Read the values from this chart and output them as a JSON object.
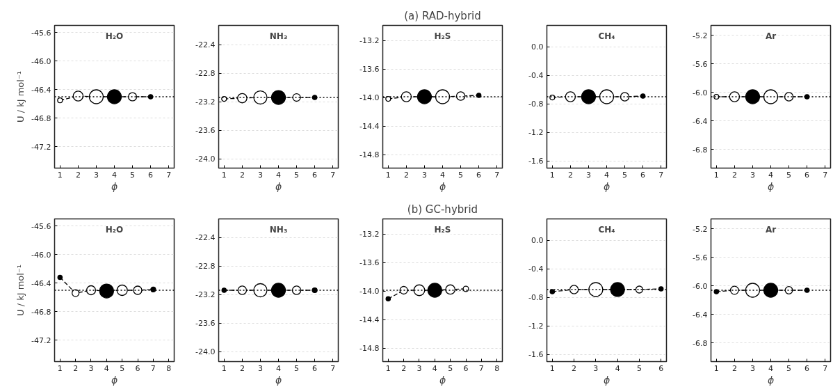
{
  "chart_data": [
    {
      "type": "bubble",
      "xlabel": "ϕ",
      "ylabel": "U / kJ mol⁻¹",
      "annotations": [
        "H₂O"
      ],
      "xlim": [
        0.7,
        7.3
      ],
      "xticks": [
        1,
        2,
        3,
        4,
        5,
        6,
        7
      ],
      "ylim": [
        -47.5,
        -45.5
      ],
      "yticks": [
        -47.2,
        -46.8,
        -46.4,
        {
          "value": -46,
          "label": "-46.0"
        },
        -45.6
      ],
      "grid": "y",
      "line_style": "dashed",
      "x": [
        1,
        2,
        3,
        4,
        5,
        6
      ],
      "series": [
        {
          "type": "line",
          "color": "#000000",
          "values": [
            -46.55,
            -46.49,
            -46.5,
            -46.5,
            -46.5,
            -46.5
          ]
        },
        {
          "type": "bubble",
          "color": "#000000",
          "values": [
            -46.55,
            -46.49,
            -46.5,
            -46.5,
            -46.5,
            -46.5
          ],
          "sizes": [
            0.12,
            0.5,
            1,
            1,
            0.35,
            0.1
          ],
          "colors": [
            "#ffffff",
            "#ffffff",
            "#ffffff",
            "#000000",
            "#ffffff",
            "#000000"
          ]
        }
      ],
      "ref_lines": [
        {
          "axis": "y",
          "value": -46.5,
          "line_style": "dotted",
          "color": "#000000"
        }
      ]
    },
    {
      "type": "bubble",
      "xlabel": "ϕ",
      "annotations": [
        "NH₃"
      ],
      "xlim": [
        0.7,
        7.3
      ],
      "xticks": [
        1,
        2,
        3,
        4,
        5,
        6,
        7
      ],
      "ylim": [
        -24.13,
        -22.13
      ],
      "yticks": [
        {
          "value": -24,
          "label": "-24.0"
        },
        -23.6,
        -23.2,
        -22.8,
        -22.4
      ],
      "grid": "y",
      "line_style": "dashed",
      "x": [
        1,
        2,
        3,
        4,
        5,
        6
      ],
      "series": [
        {
          "type": "line",
          "color": "#000000",
          "values": [
            -23.16,
            -23.15,
            -23.14,
            -23.14,
            -23.14,
            -23.14
          ]
        },
        {
          "type": "bubble",
          "color": "#000000",
          "values": [
            -23.16,
            -23.15,
            -23.14,
            -23.14,
            -23.14,
            -23.14
          ],
          "sizes": [
            0.12,
            0.45,
            0.9,
            1,
            0.3,
            0.1
          ],
          "colors": [
            "#ffffff",
            "#ffffff",
            "#ffffff",
            "#000000",
            "#ffffff",
            "#000000"
          ]
        }
      ],
      "ref_lines": [
        {
          "axis": "y",
          "value": -23.14,
          "line_style": "dotted",
          "color": "#000000"
        }
      ]
    },
    {
      "type": "bubble",
      "title": "(a) RAD-hybrid",
      "xlabel": "ϕ",
      "annotations": [
        "H₂S"
      ],
      "xlim": [
        0.7,
        7.3
      ],
      "xticks": [
        1,
        2,
        3,
        4,
        5,
        6,
        7
      ],
      "ylim": [
        -14.99,
        -12.99
      ],
      "yticks": [
        -14.8,
        -14.4,
        {
          "value": -14,
          "label": "-14.0"
        },
        -13.6,
        -13.2
      ],
      "grid": "y",
      "line_style": "dashed",
      "x": [
        1,
        2,
        3,
        4,
        5,
        6
      ],
      "series": [
        {
          "type": "line",
          "color": "#000000",
          "values": [
            -14.02,
            -13.99,
            -13.99,
            -13.99,
            -13.98,
            -13.97
          ]
        },
        {
          "type": "bubble",
          "color": "#000000",
          "values": [
            -14.02,
            -13.99,
            -13.99,
            -13.99,
            -13.98,
            -13.97
          ],
          "sizes": [
            0.12,
            0.5,
            1,
            1,
            0.37,
            0.1
          ],
          "colors": [
            "#ffffff",
            "#ffffff",
            "#000000",
            "#ffffff",
            "#ffffff",
            "#000000"
          ]
        }
      ],
      "ref_lines": [
        {
          "axis": "y",
          "value": -13.99,
          "line_style": "dotted",
          "color": "#000000"
        }
      ]
    },
    {
      "type": "bubble",
      "xlabel": "ϕ",
      "annotations": [
        "CH₄"
      ],
      "xlim": [
        0.7,
        7.3
      ],
      "xticks": [
        1,
        2,
        3,
        4,
        5,
        6,
        7
      ],
      "ylim": [
        -1.7,
        0.3
      ],
      "yticks": [
        -1.6,
        -1.2,
        -0.8,
        -0.4,
        {
          "value": 0,
          "label": "0.0"
        }
      ],
      "grid": "y",
      "line_style": "dashed",
      "x": [
        1,
        2,
        3,
        4,
        5,
        6
      ],
      "series": [
        {
          "type": "line",
          "color": "#000000",
          "values": [
            -0.71,
            -0.7,
            -0.7,
            -0.7,
            -0.7,
            -0.69
          ]
        },
        {
          "type": "bubble",
          "color": "#000000",
          "values": [
            -0.71,
            -0.7,
            -0.7,
            -0.7,
            -0.7,
            -0.69
          ],
          "sizes": [
            0.12,
            0.5,
            1,
            1,
            0.37,
            0.1
          ],
          "colors": [
            "#ffffff",
            "#ffffff",
            "#000000",
            "#ffffff",
            "#ffffff",
            "#000000"
          ]
        }
      ],
      "ref_lines": [
        {
          "axis": "y",
          "value": -0.7,
          "line_style": "dotted",
          "color": "#000000"
        }
      ]
    },
    {
      "type": "bubble",
      "xlabel": "ϕ",
      "annotations": [
        "Ar"
      ],
      "xlim": [
        0.7,
        7.3
      ],
      "xticks": [
        1,
        2,
        3,
        4,
        5,
        6,
        7
      ],
      "ylim": [
        -7.06,
        -5.06
      ],
      "yticks": [
        -6.8,
        -6.4,
        {
          "value": -6,
          "label": "-6.0"
        },
        -5.6,
        -5.2
      ],
      "grid": "y",
      "line_style": "dashed",
      "x": [
        1,
        2,
        3,
        4,
        5,
        6
      ],
      "series": [
        {
          "type": "line",
          "color": "#000000",
          "values": [
            -6.06,
            -6.06,
            -6.06,
            -6.06,
            -6.06,
            -6.06
          ]
        },
        {
          "type": "bubble",
          "color": "#000000",
          "values": [
            -6.06,
            -6.06,
            -6.06,
            -6.06,
            -6.06,
            -6.06
          ],
          "sizes": [
            0.12,
            0.5,
            1,
            1,
            0.37,
            0.1
          ],
          "colors": [
            "#ffffff",
            "#ffffff",
            "#000000",
            "#ffffff",
            "#ffffff",
            "#000000"
          ]
        }
      ],
      "ref_lines": [
        {
          "axis": "y",
          "value": -6.06,
          "line_style": "dotted",
          "color": "#000000"
        }
      ]
    },
    {
      "type": "bubble",
      "xlabel": "ϕ",
      "ylabel": "U / kJ mol⁻¹",
      "annotations": [
        "H₂O"
      ],
      "xlim": [
        0.65,
        8.35
      ],
      "xticks": [
        1,
        2,
        3,
        4,
        5,
        6,
        7,
        8
      ],
      "ylim": [
        -47.5,
        -45.5
      ],
      "yticks": [
        -47.2,
        -46.8,
        -46.4,
        {
          "value": -46,
          "label": "-46.0"
        },
        -45.6
      ],
      "grid": "y",
      "line_style": "dashed",
      "x": [
        1,
        2,
        3,
        4,
        5,
        6,
        7
      ],
      "series": [
        {
          "type": "line",
          "color": "#000000",
          "values": [
            -46.32,
            -46.54,
            -46.5,
            -46.51,
            -46.5,
            -46.5,
            -46.49
          ]
        },
        {
          "type": "bubble",
          "color": "#000000",
          "values": [
            -46.32,
            -46.54,
            -46.5,
            -46.51,
            -46.5,
            -46.5,
            -46.49
          ],
          "sizes": [
            0.1,
            0.25,
            0.42,
            1,
            0.56,
            0.36,
            0.12
          ],
          "colors": [
            "#000000",
            "#ffffff",
            "#ffffff",
            "#000000",
            "#ffffff",
            "#ffffff",
            "#000000"
          ]
        }
      ],
      "ref_lines": [
        {
          "axis": "y",
          "value": -46.5,
          "line_style": "dotted",
          "color": "#000000"
        }
      ]
    },
    {
      "type": "bubble",
      "xlabel": "ϕ",
      "annotations": [
        "NH₃"
      ],
      "xlim": [
        0.7,
        7.3
      ],
      "xticks": [
        1,
        2,
        3,
        4,
        5,
        6,
        7
      ],
      "ylim": [
        -24.14,
        -22.14
      ],
      "yticks": [
        {
          "value": -24,
          "label": "-24.0"
        },
        -23.6,
        -23.2,
        -22.8,
        -22.4
      ],
      "grid": "y",
      "line_style": "dashed",
      "x": [
        1,
        2,
        3,
        4,
        5,
        6
      ],
      "series": [
        {
          "type": "line",
          "color": "#000000",
          "values": [
            -23.14,
            -23.14,
            -23.14,
            -23.14,
            -23.14,
            -23.14
          ]
        },
        {
          "type": "bubble",
          "color": "#000000",
          "values": [
            -23.14,
            -23.14,
            -23.14,
            -23.14,
            -23.14,
            -23.14
          ],
          "sizes": [
            0.1,
            0.37,
            0.9,
            1,
            0.37,
            0.12
          ],
          "colors": [
            "#000000",
            "#ffffff",
            "#ffffff",
            "#000000",
            "#ffffff",
            "#000000"
          ]
        }
      ],
      "ref_lines": [
        {
          "axis": "y",
          "value": -23.14,
          "line_style": "dotted",
          "color": "#000000"
        }
      ]
    },
    {
      "type": "bubble",
      "title": "(b) GC-hybrid",
      "xlabel": "ϕ",
      "annotations": [
        "H₂S"
      ],
      "xlim": [
        0.65,
        8.35
      ],
      "xticks": [
        1,
        2,
        3,
        4,
        5,
        6,
        7,
        8
      ],
      "ylim": [
        -14.99,
        -12.99
      ],
      "yticks": [
        -14.8,
        -14.4,
        {
          "value": -14,
          "label": "-14.0"
        },
        -13.6,
        -13.2
      ],
      "grid": "y",
      "line_style": "dashed",
      "x": [
        1,
        2,
        3,
        4,
        5,
        6
      ],
      "series": [
        {
          "type": "line",
          "color": "#000000",
          "values": [
            -14.11,
            -13.99,
            -13.99,
            -13.99,
            -13.98,
            -13.97
          ]
        },
        {
          "type": "bubble",
          "color": "#000000",
          "values": [
            -14.11,
            -13.99,
            -13.99,
            -13.99,
            -13.98,
            -13.97
          ],
          "sizes": [
            0.1,
            0.3,
            0.6,
            1,
            0.45,
            0.15
          ],
          "colors": [
            "#000000",
            "#ffffff",
            "#ffffff",
            "#000000",
            "#ffffff",
            "#ffffff"
          ]
        }
      ],
      "ref_lines": [
        {
          "axis": "y",
          "value": -13.99,
          "line_style": "dotted",
          "color": "#000000"
        }
      ]
    },
    {
      "type": "bubble",
      "xlabel": "ϕ",
      "annotations": [
        "CH₄"
      ],
      "xlim": [
        0.75,
        6.25
      ],
      "xticks": [
        1,
        2,
        3,
        4,
        5,
        6
      ],
      "ylim": [
        -1.7,
        0.3
      ],
      "yticks": [
        -1.6,
        -1.2,
        -0.8,
        -0.4,
        {
          "value": 0,
          "label": "0.0"
        }
      ],
      "grid": "y",
      "line_style": "dashed",
      "x": [
        1,
        2,
        3,
        4,
        5,
        6
      ],
      "series": [
        {
          "type": "line",
          "color": "#000000",
          "values": [
            -0.72,
            -0.69,
            -0.69,
            -0.69,
            -0.69,
            -0.68
          ]
        },
        {
          "type": "bubble",
          "color": "#000000",
          "values": [
            -0.72,
            -0.69,
            -0.69,
            -0.69,
            -0.69,
            -0.68
          ],
          "sizes": [
            0.1,
            0.37,
            1,
            1,
            0.25,
            0.1
          ],
          "colors": [
            "#000000",
            "#ffffff",
            "#ffffff",
            "#000000",
            "#ffffff",
            "#000000"
          ]
        }
      ],
      "ref_lines": [
        {
          "axis": "y",
          "value": -0.69,
          "line_style": "dotted",
          "color": "#000000"
        }
      ]
    },
    {
      "type": "bubble",
      "xlabel": "ϕ",
      "annotations": [
        "Ar"
      ],
      "xlim": [
        0.7,
        7.3
      ],
      "xticks": [
        1,
        2,
        3,
        4,
        5,
        6,
        7
      ],
      "ylim": [
        -7.06,
        -5.06
      ],
      "yticks": [
        -6.8,
        -6.4,
        {
          "value": -6,
          "label": "-6.0"
        },
        -5.6,
        -5.2
      ],
      "grid": "y",
      "line_style": "dashed",
      "x": [
        1,
        2,
        3,
        4,
        5,
        6
      ],
      "series": [
        {
          "type": "line",
          "color": "#000000",
          "values": [
            -6.08,
            -6.06,
            -6.06,
            -6.06,
            -6.06,
            -6.06
          ]
        },
        {
          "type": "bubble",
          "color": "#000000",
          "values": [
            -6.08,
            -6.06,
            -6.06,
            -6.06,
            -6.06,
            -6.06
          ],
          "sizes": [
            0.1,
            0.34,
            1,
            1,
            0.28,
            0.1
          ],
          "colors": [
            "#000000",
            "#ffffff",
            "#ffffff",
            "#000000",
            "#ffffff",
            "#000000"
          ]
        }
      ],
      "ref_lines": [
        {
          "axis": "y",
          "value": -6.06,
          "line_style": "dotted",
          "color": "#000000"
        }
      ]
    }
  ]
}
